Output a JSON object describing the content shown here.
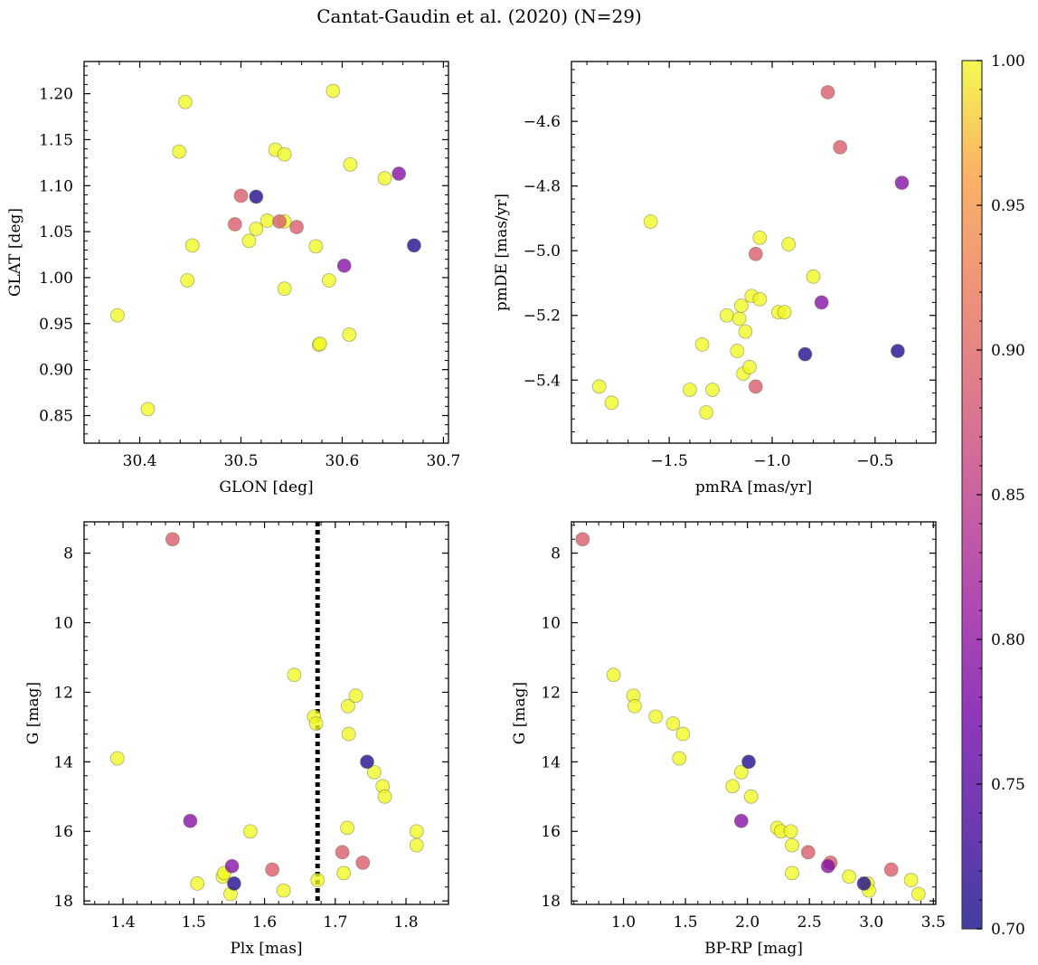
{
  "title": "Cantat-Gaudin et al. (2020) (N=29)",
  "colormap": {
    "name": "plasma",
    "range": [
      0.7,
      1.0
    ],
    "ticks": [
      0.7,
      0.75,
      0.8,
      0.85,
      0.9,
      0.95,
      1.0
    ],
    "tick_labels": [
      "0.70",
      "0.75",
      "0.80",
      "0.85",
      "0.90",
      "0.95",
      "1.00"
    ]
  },
  "chart_data": [
    {
      "type": "scatter",
      "panel": "top-left",
      "xlabel": "GLON [deg]",
      "ylabel": "GLAT [deg]",
      "xlim": [
        30.345,
        30.705
      ],
      "ylim": [
        0.82,
        1.235
      ],
      "xticks": [
        30.4,
        30.5,
        30.6,
        30.7
      ],
      "xtick_labels": [
        "30.4",
        "30.5",
        "30.6",
        "30.7"
      ],
      "yticks": [
        0.85,
        0.9,
        0.95,
        1.0,
        1.05,
        1.1,
        1.15,
        1.2
      ],
      "ytick_labels": [
        "0.85",
        "0.90",
        "0.95",
        "1.00",
        "1.05",
        "1.10",
        "1.15",
        "1.20"
      ],
      "points": [
        {
          "x": 30.378,
          "y": 0.959,
          "p": 1.0
        },
        {
          "x": 30.408,
          "y": 0.857,
          "p": 1.0
        },
        {
          "x": 30.439,
          "y": 1.137,
          "p": 1.0
        },
        {
          "x": 30.445,
          "y": 1.191,
          "p": 1.0
        },
        {
          "x": 30.447,
          "y": 0.997,
          "p": 1.0
        },
        {
          "x": 30.452,
          "y": 1.035,
          "p": 1.0
        },
        {
          "x": 30.494,
          "y": 1.058,
          "p": 0.89
        },
        {
          "x": 30.5,
          "y": 1.089,
          "p": 0.89
        },
        {
          "x": 30.508,
          "y": 1.04,
          "p": 1.0
        },
        {
          "x": 30.515,
          "y": 1.053,
          "p": 1.0
        },
        {
          "x": 30.515,
          "y": 1.088,
          "p": 0.71
        },
        {
          "x": 30.526,
          "y": 1.062,
          "p": 1.0
        },
        {
          "x": 30.534,
          "y": 1.139,
          "p": 1.0
        },
        {
          "x": 30.538,
          "y": 1.061,
          "p": 0.89
        },
        {
          "x": 30.543,
          "y": 1.061,
          "p": 1.0
        },
        {
          "x": 30.543,
          "y": 1.134,
          "p": 1.0
        },
        {
          "x": 30.543,
          "y": 0.988,
          "p": 1.0
        },
        {
          "x": 30.555,
          "y": 1.055,
          "p": 0.89
        },
        {
          "x": 30.574,
          "y": 1.034,
          "p": 1.0
        },
        {
          "x": 30.577,
          "y": 0.927,
          "p": 1.0
        },
        {
          "x": 30.578,
          "y": 0.928,
          "p": 1.0
        },
        {
          "x": 30.587,
          "y": 0.997,
          "p": 1.0
        },
        {
          "x": 30.591,
          "y": 1.203,
          "p": 1.0
        },
        {
          "x": 30.602,
          "y": 1.013,
          "p": 0.79
        },
        {
          "x": 30.607,
          "y": 0.938,
          "p": 1.0
        },
        {
          "x": 30.608,
          "y": 1.123,
          "p": 1.0
        },
        {
          "x": 30.642,
          "y": 1.108,
          "p": 1.0
        },
        {
          "x": 30.656,
          "y": 1.113,
          "p": 0.79
        },
        {
          "x": 30.671,
          "y": 1.035,
          "p": 0.71
        }
      ]
    },
    {
      "type": "scatter",
      "panel": "top-right",
      "xlabel": "pmRA [mas/yr]",
      "ylabel": "pmDE [mas/yr]",
      "xlim": [
        -1.975,
        -0.205
      ],
      "ylim": [
        -5.595,
        -4.415
      ],
      "xticks": [
        -1.5,
        -1.0,
        -0.5
      ],
      "xtick_labels": [
        "−1.5",
        "−1.0",
        "−0.5"
      ],
      "yticks": [
        -5.4,
        -5.2,
        -5.0,
        -4.8,
        -4.6
      ],
      "ytick_labels": [
        "−5.4",
        "−5.2",
        "−5.0",
        "−4.8",
        "−4.6"
      ],
      "points": [
        {
          "x": -1.84,
          "y": -5.42,
          "p": 1.0
        },
        {
          "x": -1.78,
          "y": -5.47,
          "p": 1.0
        },
        {
          "x": -1.59,
          "y": -4.91,
          "p": 1.0
        },
        {
          "x": -1.4,
          "y": -5.43,
          "p": 1.0
        },
        {
          "x": -1.34,
          "y": -5.29,
          "p": 1.0
        },
        {
          "x": -1.32,
          "y": -5.5,
          "p": 1.0
        },
        {
          "x": -1.29,
          "y": -5.43,
          "p": 1.0
        },
        {
          "x": -1.22,
          "y": -5.2,
          "p": 1.0
        },
        {
          "x": -1.17,
          "y": -5.31,
          "p": 1.0
        },
        {
          "x": -1.16,
          "y": -5.21,
          "p": 1.0
        },
        {
          "x": -1.15,
          "y": -5.17,
          "p": 1.0
        },
        {
          "x": -1.14,
          "y": -5.38,
          "p": 1.0
        },
        {
          "x": -1.13,
          "y": -5.25,
          "p": 1.0
        },
        {
          "x": -1.11,
          "y": -5.36,
          "p": 1.0
        },
        {
          "x": -1.1,
          "y": -5.14,
          "p": 1.0
        },
        {
          "x": -1.08,
          "y": -5.01,
          "p": 0.89
        },
        {
          "x": -1.08,
          "y": -5.42,
          "p": 0.89
        },
        {
          "x": -1.06,
          "y": -4.96,
          "p": 1.0
        },
        {
          "x": -1.06,
          "y": -5.15,
          "p": 1.0
        },
        {
          "x": -0.97,
          "y": -5.19,
          "p": 1.0
        },
        {
          "x": -0.94,
          "y": -5.19,
          "p": 1.0
        },
        {
          "x": -0.92,
          "y": -4.98,
          "p": 1.0
        },
        {
          "x": -0.84,
          "y": -5.32,
          "p": 0.71
        },
        {
          "x": -0.8,
          "y": -5.08,
          "p": 1.0
        },
        {
          "x": -0.76,
          "y": -5.16,
          "p": 0.79
        },
        {
          "x": -0.73,
          "y": -4.51,
          "p": 0.89
        },
        {
          "x": -0.67,
          "y": -4.68,
          "p": 0.89
        },
        {
          "x": -0.39,
          "y": -5.31,
          "p": 0.71
        },
        {
          "x": -0.37,
          "y": -4.79,
          "p": 0.79
        }
      ]
    },
    {
      "type": "scatter",
      "panel": "bottom-left",
      "xlabel": "Plx [mas]",
      "ylabel": "G [mag]",
      "xlim": [
        1.345,
        1.86
      ],
      "ylim": [
        18.1,
        7.1
      ],
      "y_inverted": true,
      "xticks": [
        1.4,
        1.5,
        1.6,
        1.7,
        1.8
      ],
      "xtick_labels": [
        "1.4",
        "1.5",
        "1.6",
        "1.7",
        "1.8"
      ],
      "yticks": [
        8,
        10,
        12,
        14,
        16,
        18
      ],
      "ytick_labels": [
        "8",
        "10",
        "12",
        "14",
        "16",
        "18"
      ],
      "vline": {
        "x": 1.675,
        "style": "dotted",
        "color": "#000000"
      },
      "points": [
        {
          "x": 1.392,
          "y": 13.9,
          "p": 1.0
        },
        {
          "x": 1.47,
          "y": 7.6,
          "p": 0.89
        },
        {
          "x": 1.495,
          "y": 15.7,
          "p": 0.79
        },
        {
          "x": 1.505,
          "y": 17.5,
          "p": 1.0
        },
        {
          "x": 1.541,
          "y": 17.3,
          "p": 1.0
        },
        {
          "x": 1.543,
          "y": 17.2,
          "p": 1.0
        },
        {
          "x": 1.552,
          "y": 17.8,
          "p": 1.0
        },
        {
          "x": 1.554,
          "y": 17.0,
          "p": 0.79
        },
        {
          "x": 1.557,
          "y": 17.5,
          "p": 0.71
        },
        {
          "x": 1.58,
          "y": 16.0,
          "p": 1.0
        },
        {
          "x": 1.611,
          "y": 17.1,
          "p": 0.89
        },
        {
          "x": 1.627,
          "y": 17.7,
          "p": 1.0
        },
        {
          "x": 1.642,
          "y": 11.5,
          "p": 1.0
        },
        {
          "x": 1.67,
          "y": 12.7,
          "p": 1.0
        },
        {
          "x": 1.673,
          "y": 12.9,
          "p": 1.0
        },
        {
          "x": 1.675,
          "y": 17.4,
          "p": 1.0
        },
        {
          "x": 1.71,
          "y": 16.6,
          "p": 0.89
        },
        {
          "x": 1.712,
          "y": 17.2,
          "p": 1.0
        },
        {
          "x": 1.717,
          "y": 15.9,
          "p": 1.0
        },
        {
          "x": 1.718,
          "y": 12.4,
          "p": 1.0
        },
        {
          "x": 1.719,
          "y": 13.2,
          "p": 1.0
        },
        {
          "x": 1.729,
          "y": 12.1,
          "p": 1.0
        },
        {
          "x": 1.739,
          "y": 16.9,
          "p": 0.89
        },
        {
          "x": 1.745,
          "y": 14.0,
          "p": 0.71
        },
        {
          "x": 1.755,
          "y": 14.3,
          "p": 1.0
        },
        {
          "x": 1.767,
          "y": 14.7,
          "p": 1.0
        },
        {
          "x": 1.77,
          "y": 15.0,
          "p": 1.0
        },
        {
          "x": 1.815,
          "y": 16.0,
          "p": 1.0
        },
        {
          "x": 1.815,
          "y": 16.4,
          "p": 1.0
        }
      ]
    },
    {
      "type": "scatter",
      "panel": "bottom-right",
      "xlabel": "BP-RP [mag]",
      "ylabel": "G [mag]",
      "xlim": [
        0.58,
        3.52
      ],
      "ylim": [
        18.1,
        7.1
      ],
      "y_inverted": true,
      "xticks": [
        1.0,
        1.5,
        2.0,
        2.5,
        3.0,
        3.5
      ],
      "xtick_labels": [
        "1.0",
        "1.5",
        "2.0",
        "2.5",
        "3.0",
        "3.5"
      ],
      "yticks": [
        8,
        10,
        12,
        14,
        16,
        18
      ],
      "ytick_labels": [
        "8",
        "10",
        "12",
        "14",
        "16",
        "18"
      ],
      "points": [
        {
          "x": 0.67,
          "y": 7.6,
          "p": 0.89
        },
        {
          "x": 0.92,
          "y": 11.5,
          "p": 1.0
        },
        {
          "x": 1.08,
          "y": 12.1,
          "p": 1.0
        },
        {
          "x": 1.09,
          "y": 12.4,
          "p": 1.0
        },
        {
          "x": 1.26,
          "y": 12.7,
          "p": 1.0
        },
        {
          "x": 1.4,
          "y": 12.9,
          "p": 1.0
        },
        {
          "x": 1.45,
          "y": 13.9,
          "p": 1.0
        },
        {
          "x": 1.48,
          "y": 13.2,
          "p": 1.0
        },
        {
          "x": 1.88,
          "y": 14.7,
          "p": 1.0
        },
        {
          "x": 1.95,
          "y": 14.3,
          "p": 1.0
        },
        {
          "x": 1.95,
          "y": 15.7,
          "p": 0.79
        },
        {
          "x": 2.01,
          "y": 14.0,
          "p": 0.71
        },
        {
          "x": 2.03,
          "y": 15.0,
          "p": 1.0
        },
        {
          "x": 2.24,
          "y": 15.9,
          "p": 1.0
        },
        {
          "x": 2.27,
          "y": 16.0,
          "p": 1.0
        },
        {
          "x": 2.35,
          "y": 16.0,
          "p": 1.0
        },
        {
          "x": 2.36,
          "y": 16.4,
          "p": 1.0
        },
        {
          "x": 2.36,
          "y": 17.2,
          "p": 1.0
        },
        {
          "x": 2.49,
          "y": 16.6,
          "p": 0.89
        },
        {
          "x": 2.65,
          "y": 17.0,
          "p": 0.79
        },
        {
          "x": 2.67,
          "y": 16.9,
          "p": 0.89
        },
        {
          "x": 2.82,
          "y": 17.3,
          "p": 1.0
        },
        {
          "x": 2.94,
          "y": 17.5,
          "p": 0.71
        },
        {
          "x": 2.97,
          "y": 17.5,
          "p": 1.0
        },
        {
          "x": 2.98,
          "y": 17.7,
          "p": 1.0
        },
        {
          "x": 3.16,
          "y": 17.1,
          "p": 0.89
        },
        {
          "x": 3.32,
          "y": 17.4,
          "p": 1.0
        },
        {
          "x": 3.38,
          "y": 17.8,
          "p": 1.0
        }
      ]
    }
  ]
}
